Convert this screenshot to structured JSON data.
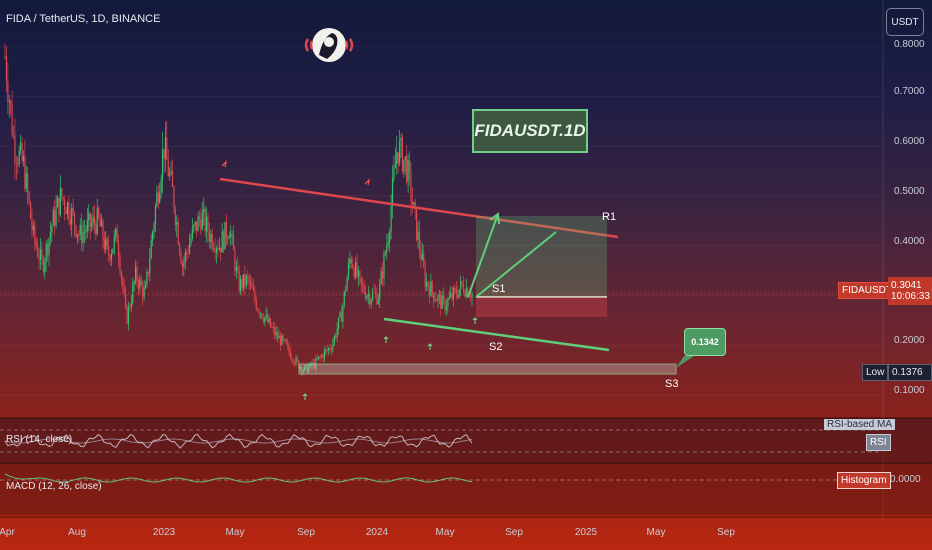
{
  "header": {
    "symbol_title": "FIDA / TetherUS, 1D, BINANCE",
    "currency": "USDT"
  },
  "annotation": {
    "title_box": "FIDAUSDT.1D",
    "callout_value": "0.1342",
    "levels": {
      "r1": "R1",
      "s1": "S1",
      "s2": "S2",
      "s3": "S3"
    }
  },
  "price_axis": {
    "labels": [
      "0.8000",
      "0.7000",
      "0.6000",
      "0.5000",
      "0.4000",
      "0.3000",
      "0.2000",
      "0.1000"
    ],
    "symbol_tag": "FIDAUSDT",
    "last_price": "0.3041",
    "countdown": "10:06:33",
    "low_label": "Low",
    "low_value": "0.1376"
  },
  "time_axis": {
    "labels": [
      "Apr",
      "Aug",
      "2023",
      "May",
      "Sep",
      "2024",
      "May",
      "Sep",
      "2025",
      "May",
      "Sep"
    ]
  },
  "rsi_pane": {
    "label": "RSI (14, close)",
    "ma_tag": "RSI-based MA",
    "rsi_tag": "RSI"
  },
  "macd_pane": {
    "label": "MACD (12, 26, close)",
    "histogram_tag": "Histogram",
    "zero_value": "0.0000"
  },
  "colors": {
    "resistance": "#e0474c",
    "support": "#5fcf7c",
    "candle_up": "#39c16c",
    "candle_down": "#e0474c"
  },
  "chart_data": {
    "type": "candlestick",
    "title": "FIDA / TetherUS, 1D, BINANCE",
    "ylim": [
      0.08,
      0.82
    ],
    "x_ticks": [
      "Apr",
      "Aug",
      "2023",
      "May",
      "Sep",
      "2024",
      "May",
      "Sep",
      "2025",
      "May",
      "Sep"
    ],
    "y_ticks": [
      0.8,
      0.7,
      0.6,
      0.5,
      0.4,
      0.3,
      0.2,
      0.1
    ],
    "last_price": 0.3041,
    "low": 0.1376,
    "close_path": [
      0.78,
      0.6,
      0.56,
      0.42,
      0.36,
      0.44,
      0.5,
      0.47,
      0.42,
      0.44,
      0.45,
      0.38,
      0.42,
      0.25,
      0.34,
      0.3,
      0.46,
      0.6,
      0.5,
      0.36,
      0.42,
      0.46,
      0.42,
      0.4,
      0.44,
      0.32,
      0.33,
      0.28,
      0.25,
      0.22,
      0.2,
      0.17,
      0.15,
      0.16,
      0.18,
      0.2,
      0.26,
      0.38,
      0.32,
      0.3,
      0.3,
      0.42,
      0.6,
      0.56,
      0.44,
      0.33,
      0.3,
      0.28,
      0.3,
      0.32,
      0.3041
    ]
  }
}
